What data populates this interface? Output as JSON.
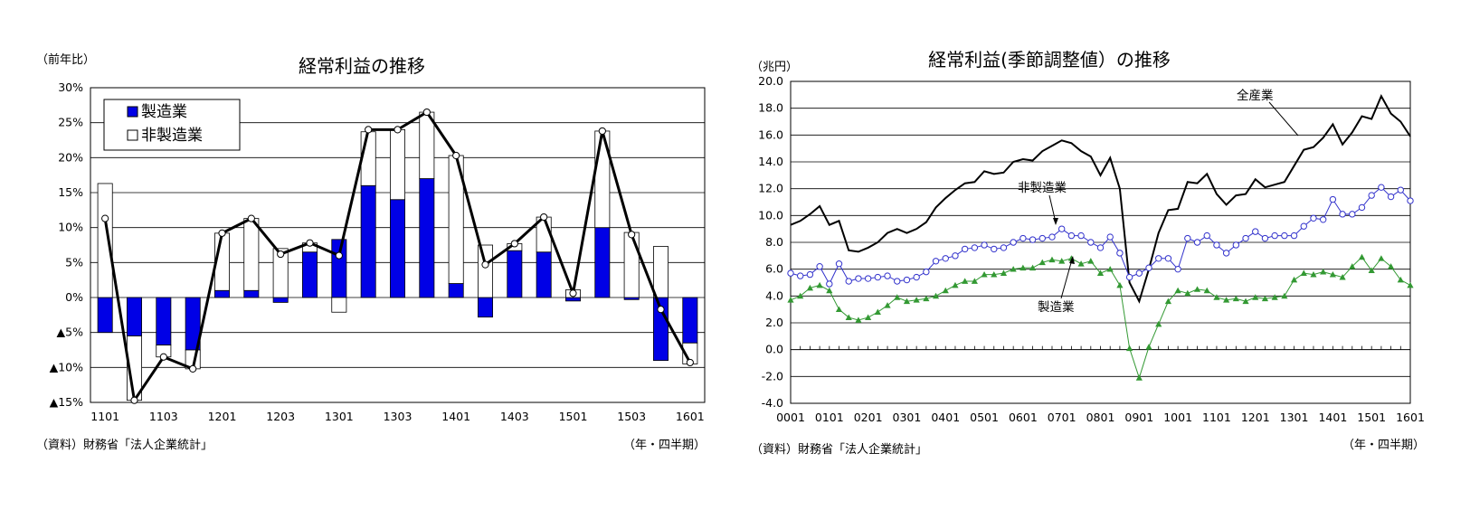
{
  "colors": {
    "manufacturing": "#0000e6",
    "nonmanufacturing": "#ffffff",
    "line": "#000000",
    "all_industry": "#000000",
    "nonmfg_series": "#3333cc",
    "mfg_series": "#339933"
  },
  "chart_data": [
    {
      "type": "bar",
      "title": "経常利益の推移",
      "ylabel": "（前年比）",
      "xlabel": "（年・四半期）",
      "source": "（資料）財務省「法人企業統計」",
      "ylim": [
        -15,
        30
      ],
      "yticks": [
        30,
        25,
        20,
        15,
        10,
        5,
        0,
        -5,
        -10,
        -15
      ],
      "ytick_labels": [
        "30%",
        "25%",
        "20%",
        "15%",
        "10%",
        "5%",
        "0%",
        "▲5%",
        "▲10%",
        "▲15%"
      ],
      "categories": [
        "1101",
        "1102",
        "1103",
        "1104",
        "1201",
        "1202",
        "1203",
        "1204",
        "1301",
        "1302",
        "1303",
        "1304",
        "1401",
        "1402",
        "1403",
        "1404",
        "1501",
        "1502",
        "1503",
        "1504",
        "1601"
      ],
      "xtick_labels": [
        "1101",
        "1103",
        "1201",
        "1203",
        "1301",
        "1303",
        "1401",
        "1403",
        "1501",
        "1503",
        "1601"
      ],
      "legend_position": "top-left",
      "series": [
        {
          "name": "製造業",
          "kind": "stacked-bar",
          "values": [
            -5.0,
            -5.5,
            -6.8,
            -7.5,
            1.0,
            1.0,
            -0.7,
            6.5,
            8.3,
            16.0,
            14.0,
            17.0,
            2.0,
            -2.8,
            6.7,
            6.5,
            -0.5,
            10.0,
            -0.3,
            -9.0,
            -6.5
          ]
        },
        {
          "name": "非製造業",
          "kind": "stacked-bar",
          "values": [
            16.3,
            -9.2,
            -1.7,
            -2.7,
            8.2,
            10.3,
            7.0,
            1.3,
            -2.1,
            7.7,
            10.0,
            9.5,
            18.3,
            7.5,
            1.0,
            5.0,
            1.1,
            13.8,
            9.3,
            7.3,
            -3.0
          ]
        },
        {
          "name": "",
          "kind": "line",
          "values": [
            11.3,
            -14.7,
            -8.5,
            -10.2,
            9.2,
            11.3,
            6.2,
            7.8,
            6.0,
            24.0,
            24.0,
            26.5,
            20.3,
            4.7,
            7.7,
            11.5,
            0.6,
            23.8,
            9.0,
            -1.7,
            -9.3
          ]
        }
      ]
    },
    {
      "type": "line",
      "title": "経常利益(季節調整値）の推移",
      "ylabel": "（兆円）",
      "xlabel": "（年・四半期）",
      "source": "（資料）財務省「法人企業統計」",
      "ylim": [
        -4,
        20
      ],
      "yticks": [
        20,
        18,
        16,
        14,
        12,
        10,
        8,
        6,
        4,
        2,
        0,
        -2,
        -4
      ],
      "ytick_labels": [
        "20.0",
        "18.0",
        "16.0",
        "14.0",
        "12.0",
        "10.0",
        "8.0",
        "6.0",
        "4.0",
        "2.0",
        "0.0",
        "-2.0",
        "-4.0"
      ],
      "xtick_labels": [
        "0001",
        "0101",
        "0201",
        "0301",
        "0401",
        "0501",
        "0601",
        "0701",
        "0801",
        "0901",
        "1001",
        "1101",
        "1201",
        "1301",
        "1401",
        "1501",
        "1601"
      ],
      "annotations": [
        "全産業",
        "非製造業",
        "製造業"
      ],
      "series": [
        {
          "name": "全産業",
          "values": [
            9.3,
            9.6,
            10.1,
            10.7,
            9.3,
            9.6,
            7.4,
            7.3,
            7.6,
            8.0,
            8.7,
            9.0,
            8.7,
            9.0,
            9.5,
            10.6,
            11.3,
            11.9,
            12.4,
            12.5,
            13.3,
            13.1,
            13.2,
            14.0,
            14.2,
            14.1,
            14.8,
            15.2,
            15.6,
            15.4,
            14.8,
            14.4,
            13.0,
            14.3,
            12.0,
            5.0,
            3.6,
            6.0,
            8.7,
            10.4,
            10.5,
            12.5,
            12.4,
            13.1,
            11.6,
            10.8,
            11.5,
            11.6,
            12.7,
            12.1,
            12.3,
            12.5,
            13.7,
            14.9,
            15.1,
            15.8,
            16.8,
            15.3,
            16.2,
            17.4,
            17.2,
            18.9,
            17.6,
            17.0,
            15.9
          ]
        },
        {
          "name": "非製造業",
          "values": [
            5.7,
            5.5,
            5.6,
            6.2,
            4.9,
            6.4,
            5.1,
            5.3,
            5.3,
            5.4,
            5.5,
            5.1,
            5.2,
            5.4,
            5.8,
            6.6,
            6.8,
            7.0,
            7.5,
            7.6,
            7.8,
            7.5,
            7.6,
            8.0,
            8.3,
            8.2,
            8.3,
            8.4,
            9.0,
            8.5,
            8.5,
            8.0,
            7.6,
            8.4,
            7.2,
            5.4,
            5.7,
            6.1,
            6.8,
            6.8,
            6.0,
            8.3,
            8.0,
            8.5,
            7.8,
            7.2,
            7.8,
            8.3,
            8.8,
            8.3,
            8.5,
            8.5,
            8.5,
            9.2,
            9.8,
            9.7,
            11.2,
            10.1,
            10.1,
            10.6,
            11.5,
            12.1,
            11.4,
            11.9,
            11.1
          ]
        },
        {
          "name": "製造業",
          "values": [
            3.7,
            4.0,
            4.6,
            4.8,
            4.4,
            3.0,
            2.4,
            2.2,
            2.4,
            2.8,
            3.3,
            3.9,
            3.6,
            3.7,
            3.8,
            4.0,
            4.4,
            4.8,
            5.1,
            5.1,
            5.6,
            5.6,
            5.7,
            6.0,
            6.1,
            6.1,
            6.5,
            6.7,
            6.6,
            6.8,
            6.4,
            6.6,
            5.7,
            6.0,
            4.8,
            0.1,
            -2.1,
            0.2,
            1.9,
            3.6,
            4.4,
            4.2,
            4.5,
            4.4,
            3.9,
            3.7,
            3.8,
            3.6,
            3.9,
            3.8,
            3.9,
            4.0,
            5.2,
            5.7,
            5.6,
            5.8,
            5.6,
            5.4,
            6.2,
            6.9,
            5.9,
            6.8,
            6.2,
            5.2,
            4.8
          ]
        }
      ]
    }
  ]
}
